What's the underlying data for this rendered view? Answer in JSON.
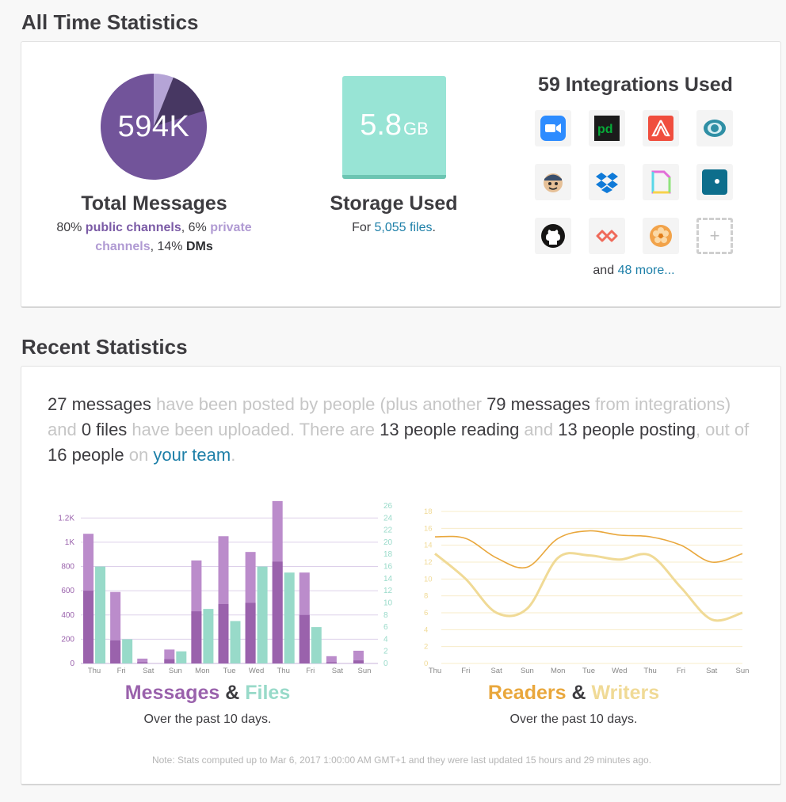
{
  "all_time": {
    "section_title": "All Time Statistics",
    "messages": {
      "value": "594K",
      "heading": "Total Messages",
      "pct_public": "80%",
      "public_label": "public channels",
      "sep1": ",",
      "pct_private": "6%",
      "private_label": "private channels",
      "sep2": ",",
      "pct_dm": "14%",
      "dm_label": "DMs",
      "shares": {
        "public": 80,
        "private": 6,
        "dm": 14
      }
    },
    "storage": {
      "value": "5.8",
      "unit": "GB",
      "heading": "Storage Used",
      "for_text": "For",
      "files_link": "5,055 files",
      "period": "."
    },
    "integrations": {
      "heading": "59 Integrations Used",
      "and_text": "and",
      "more_link": "48 more...",
      "icons": [
        "zoom-icon",
        "pagerduty-icon",
        "sentry-icon",
        "eye-app-icon",
        "mailchimp-icon",
        "dropbox-icon",
        "page-app-icon",
        "square-dot-app-icon",
        "github-icon",
        "infinity-app-icon",
        "flower-app-icon",
        "add-integration-icon"
      ]
    }
  },
  "recent": {
    "section_title": "Recent Statistics",
    "summary": {
      "m1": "27 messages",
      "t1": " have been posted by people (plus another ",
      "m2": "79 messages",
      "t2": " from integrations) and ",
      "f1": "0 files",
      "t3": " have been uploaded. There are ",
      "r1": "13 people reading",
      "t4": " and ",
      "w1": "13 people posting",
      "t5": ", out of ",
      "p1": "16 people",
      "t6": " on ",
      "team": "your team",
      "t7": "."
    },
    "chart1": {
      "title_a": "Messages",
      "amp": " & ",
      "title_b": "Files",
      "sub": "Over the past 10 days."
    },
    "chart2": {
      "title_a": "Readers",
      "amp": " & ",
      "title_b": "Writers",
      "sub": "Over the past 10 days."
    },
    "note": "Note: Stats computed up to Mar 6, 2017 1:00:00 AM GMT+1 and they were last updated 15 hours and 29 minutes ago."
  },
  "colors": {
    "msg_dark": "#9a62ac",
    "msg_light": "#bb8ccb",
    "files": "#98dac9",
    "readers": "#e9a73c",
    "writers": "#f0da96"
  },
  "chart_data": [
    {
      "type": "bar",
      "categories": [
        "Thu",
        "Fri",
        "Sat",
        "Sun",
        "Mon",
        "Tue",
        "Wed",
        "Thu",
        "Fri",
        "Sat",
        "Sun"
      ],
      "left_ticks": [
        "0",
        "200",
        "400",
        "600",
        "800",
        "1K",
        "1.2K"
      ],
      "right_ticks": [
        "0",
        "2",
        "4",
        "6",
        "8",
        "10",
        "12",
        "14",
        "16",
        "18",
        "20",
        "22",
        "24",
        "26"
      ],
      "left_ylim": [
        0,
        1300
      ],
      "right_ylim": [
        0,
        26
      ],
      "series": [
        {
          "name": "Messages",
          "axis": "left",
          "values": [
            1070,
            590,
            40,
            115,
            850,
            1050,
            920,
            1340,
            750,
            60,
            105
          ]
        },
        {
          "name": "Messages (people)",
          "axis": "left",
          "values": [
            600,
            190,
            10,
            35,
            430,
            490,
            500,
            840,
            400,
            10,
            25
          ]
        },
        {
          "name": "Files",
          "axis": "right",
          "values": [
            16,
            4,
            null,
            2,
            9,
            7,
            16,
            15,
            6,
            null,
            null
          ]
        }
      ],
      "grid": true
    },
    {
      "type": "line",
      "categories": [
        "Thu",
        "Fri",
        "Sat",
        "Sun",
        "Mon",
        "Tue",
        "Wed",
        "Thu",
        "Fri",
        "Sat",
        "Sun"
      ],
      "y_ticks": [
        "0",
        "2",
        "4",
        "6",
        "8",
        "10",
        "12",
        "14",
        "16",
        "18"
      ],
      "ylim": [
        0,
        18
      ],
      "series": [
        {
          "name": "Readers",
          "values": [
            15,
            14.8,
            12.5,
            11.4,
            14.8,
            15.7,
            15.2,
            15,
            14,
            12,
            13
          ]
        },
        {
          "name": "Writers",
          "values": [
            13,
            10,
            6,
            6.5,
            12.5,
            12.8,
            12.3,
            12.8,
            9,
            5.2,
            6
          ]
        }
      ],
      "grid": true
    }
  ]
}
